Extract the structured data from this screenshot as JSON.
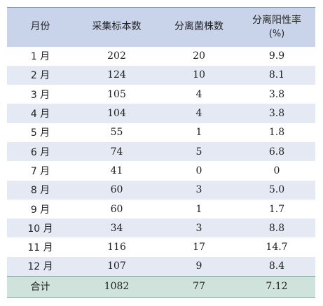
{
  "table": {
    "headers": {
      "month": "月份",
      "samples": "采集标本数",
      "strains": "分离菌株数",
      "rate_line1": "分离阳性率",
      "rate_line2": "(%)"
    },
    "rows": [
      {
        "month": "1 月",
        "samples": "202",
        "strains": "20",
        "rate": "9.9"
      },
      {
        "month": "2 月",
        "samples": "124",
        "strains": "10",
        "rate": "8.1"
      },
      {
        "month": "3 月",
        "samples": "105",
        "strains": "4",
        "rate": "3.8"
      },
      {
        "month": "4 月",
        "samples": "104",
        "strains": "4",
        "rate": "3.8"
      },
      {
        "month": "5 月",
        "samples": "55",
        "strains": "1",
        "rate": "1.8"
      },
      {
        "month": "6 月",
        "samples": "74",
        "strains": "5",
        "rate": "6.8"
      },
      {
        "month": "7 月",
        "samples": "41",
        "strains": "0",
        "rate": "0"
      },
      {
        "month": "8 月",
        "samples": "60",
        "strains": "3",
        "rate": "5.0"
      },
      {
        "month": "9 月",
        "samples": "60",
        "strains": "1",
        "rate": "1.7"
      },
      {
        "month": "10 月",
        "samples": "34",
        "strains": "3",
        "rate": "8.8"
      },
      {
        "month": "11 月",
        "samples": "116",
        "strains": "17",
        "rate": "14.7"
      },
      {
        "month": "12 月",
        "samples": "107",
        "strains": "9",
        "rate": "8.4"
      }
    ],
    "total": {
      "month": "合计",
      "samples": "1082",
      "strains": "77",
      "rate": "7.12"
    }
  },
  "colors": {
    "header_bg": "#c9d4ea",
    "alt_row_bg": "#e4e9f4",
    "total_bg": "#cfe3dc"
  }
}
